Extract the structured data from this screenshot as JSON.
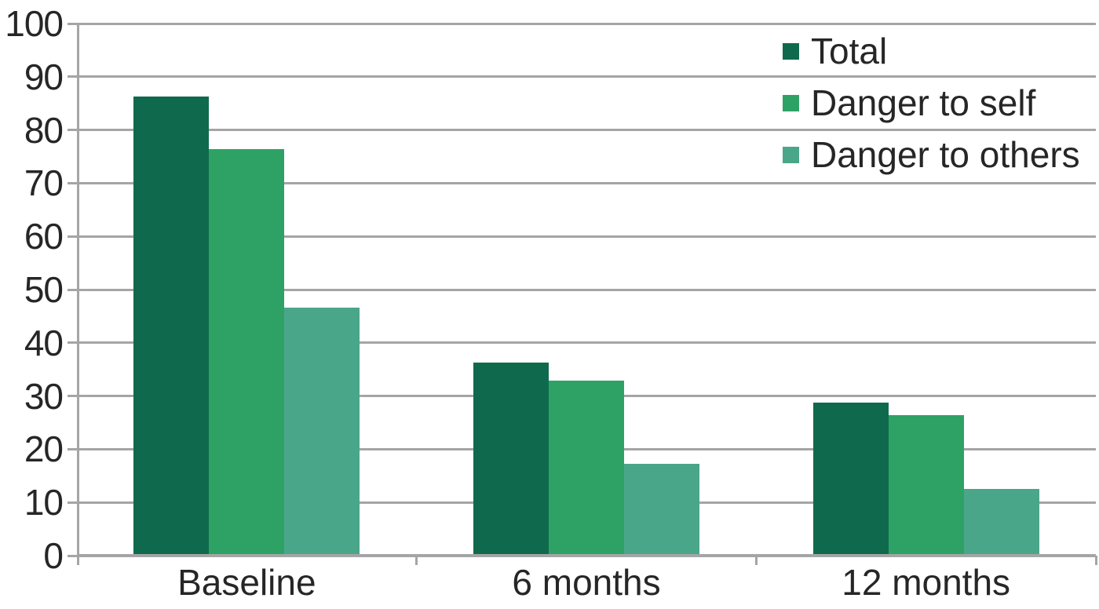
{
  "chart_data": {
    "type": "bar",
    "title": "",
    "xlabel": "",
    "ylabel": "",
    "categories": [
      "Baseline",
      "6 months",
      "12 months"
    ],
    "series": [
      {
        "name": "Total",
        "color": "#0f6a4d",
        "values": [
          86.2,
          36.2,
          28.6
        ]
      },
      {
        "name": "Danger to self",
        "color": "#2ea265",
        "values": [
          76.3,
          32.8,
          26.3
        ]
      },
      {
        "name": "Danger to others",
        "color": "#4aa689",
        "values": [
          46.5,
          17.1,
          12.4
        ]
      }
    ],
    "ylim": [
      0,
      100
    ],
    "yticks": [
      0,
      10,
      20,
      30,
      40,
      50,
      60,
      70,
      80,
      90,
      100
    ],
    "grid": "horizontal",
    "legend_position": "top-right",
    "colors": {
      "gridline": "#a5a5a5",
      "axis": "#a5a5a5",
      "text": "#262626",
      "background": "#ffffff"
    }
  }
}
